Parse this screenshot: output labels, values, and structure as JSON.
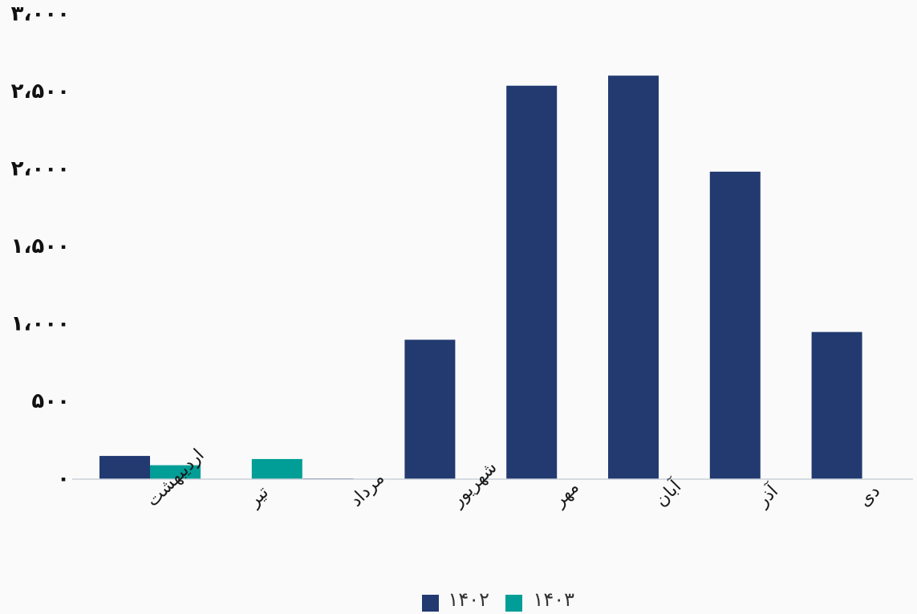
{
  "chart_data": {
    "type": "bar",
    "categories": [
      "اردیبهشت",
      "تیر",
      "مرداد",
      "شهریور",
      "مهر",
      "آبان",
      "آذر",
      "دی"
    ],
    "series": [
      {
        "name": "۱۴۰۲",
        "color": "#223a70",
        "values": [
          150,
          null,
          5,
          900,
          2540,
          2605,
          1985,
          950
        ]
      },
      {
        "name": "۱۴۰۳",
        "color": "#009e96",
        "values": [
          90,
          130,
          null,
          null,
          null,
          null,
          null,
          null
        ]
      }
    ],
    "ylim": [
      0,
      3000
    ],
    "yticks": [
      0,
      500,
      1000,
      1500,
      2000,
      2500,
      3000
    ],
    "ytick_labels": [
      "۰",
      "۵۰۰",
      "۱،۰۰۰",
      "۱،۵۰۰",
      "۲،۰۰۰",
      "۲،۵۰۰",
      "۳،۰۰۰"
    ],
    "grid": false,
    "legend_position": "bottom-center",
    "title": "",
    "xlabel": "",
    "ylabel": ""
  }
}
